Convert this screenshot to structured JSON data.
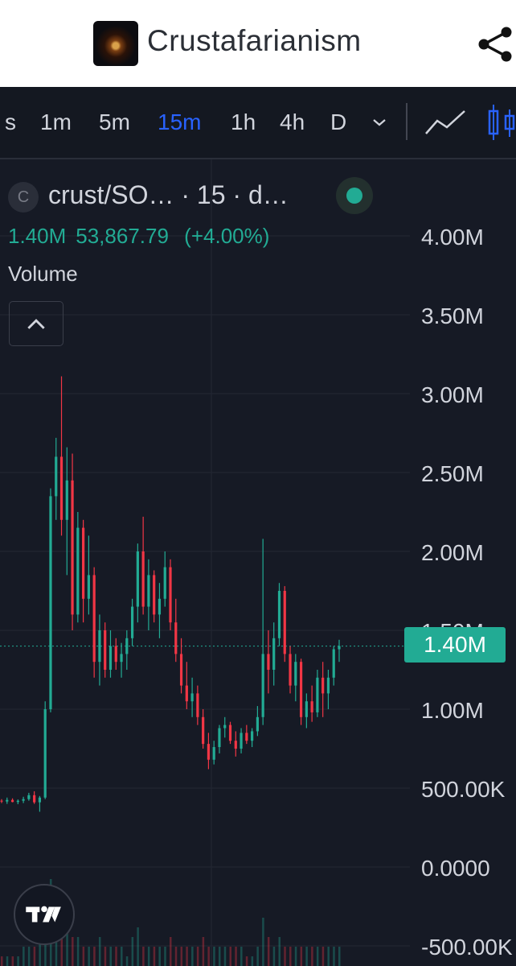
{
  "header": {
    "title": "Crustafarianism",
    "share_icon": "share-icon",
    "logo_icon": "app-logo"
  },
  "toolbar": {
    "timeframes": [
      "s",
      "1m",
      "5m",
      "15m",
      "1h",
      "4h",
      "D"
    ],
    "active_timeframe": "15m",
    "dropdown_icon": "chevron-down-icon",
    "chart_types": [
      "line-chart-icon",
      "candlestick-chart-icon"
    ],
    "accent_color": "#2962ff"
  },
  "legend": {
    "symbol_initial": "C",
    "symbol_title": "crust/SO…",
    "interval_source": "· 15 · d…",
    "market_status": "open",
    "last_value": "1.40M",
    "change": "53,867.79",
    "change_pct": "(+4.00%)",
    "indicator": "Volume",
    "up_color": "#22ab94",
    "down_color": "#f23645"
  },
  "chart_data": {
    "type": "candlestick",
    "title": "crust/SO… · 15 · d…",
    "y_ticks": [
      "4.00M",
      "3.50M",
      "3.00M",
      "2.50M",
      "2.00M",
      "1.50M",
      "1.00M",
      "500.00K",
      "0.0000",
      "-500.00K"
    ],
    "ylim": [
      -500000,
      4000000
    ],
    "last_price": 1400000,
    "last_price_label": "1.40M",
    "grid": true,
    "candles": [
      [
        420000,
        430000,
        405000,
        415000
      ],
      [
        415000,
        440000,
        400000,
        425000
      ],
      [
        425000,
        435000,
        410000,
        412000
      ],
      [
        412000,
        428000,
        398000,
        420000
      ],
      [
        420000,
        445000,
        405000,
        430000
      ],
      [
        430000,
        470000,
        420000,
        455000
      ],
      [
        455000,
        480000,
        400000,
        410000
      ],
      [
        410000,
        450000,
        350000,
        440000
      ],
      [
        440000,
        1050000,
        430000,
        1000000
      ],
      [
        1000000,
        2400000,
        980000,
        2350000
      ],
      [
        2350000,
        2720000,
        2200000,
        2600000
      ],
      [
        2600000,
        3110000,
        2100000,
        2200000
      ],
      [
        2200000,
        2660000,
        1850000,
        2450000
      ],
      [
        2450000,
        2620000,
        1500000,
        1600000
      ],
      [
        1600000,
        2250000,
        1550000,
        2150000
      ],
      [
        2150000,
        2200000,
        1550000,
        1700000
      ],
      [
        1700000,
        2100000,
        1600000,
        1850000
      ],
      [
        1850000,
        1900000,
        1200000,
        1300000
      ],
      [
        1300000,
        1600000,
        1150000,
        1500000
      ],
      [
        1500000,
        1550000,
        1200000,
        1250000
      ],
      [
        1250000,
        1500000,
        1200000,
        1400000
      ],
      [
        1400000,
        1450000,
        1250000,
        1300000
      ],
      [
        1300000,
        1420000,
        1200000,
        1350000
      ],
      [
        1350000,
        1500000,
        1250000,
        1450000
      ],
      [
        1450000,
        1700000,
        1400000,
        1650000
      ],
      [
        1650000,
        2050000,
        1550000,
        2000000
      ],
      [
        2000000,
        2220000,
        1600000,
        1650000
      ],
      [
        1650000,
        1950000,
        1500000,
        1850000
      ],
      [
        1850000,
        1880000,
        1550000,
        1600000
      ],
      [
        1600000,
        1800000,
        1450000,
        1700000
      ],
      [
        1700000,
        2000000,
        1650000,
        1900000
      ],
      [
        1900000,
        1950000,
        1500000,
        1550000
      ],
      [
        1550000,
        1700000,
        1300000,
        1350000
      ],
      [
        1350000,
        1450000,
        1100000,
        1150000
      ],
      [
        1150000,
        1300000,
        1000000,
        1050000
      ],
      [
        1050000,
        1200000,
        950000,
        1100000
      ],
      [
        1100000,
        1150000,
        900000,
        950000
      ],
      [
        950000,
        1000000,
        750000,
        780000
      ],
      [
        780000,
        850000,
        620000,
        680000
      ],
      [
        680000,
        800000,
        650000,
        760000
      ],
      [
        760000,
        900000,
        720000,
        880000
      ],
      [
        880000,
        950000,
        820000,
        900000
      ],
      [
        900000,
        920000,
        780000,
        800000
      ],
      [
        800000,
        860000,
        700000,
        750000
      ],
      [
        750000,
        880000,
        720000,
        850000
      ],
      [
        850000,
        900000,
        780000,
        800000
      ],
      [
        800000,
        880000,
        760000,
        860000
      ],
      [
        860000,
        1020000,
        830000,
        950000
      ],
      [
        950000,
        2080000,
        900000,
        1350000
      ],
      [
        1350000,
        1500000,
        1100000,
        1250000
      ],
      [
        1250000,
        1550000,
        1150000,
        1450000
      ],
      [
        1450000,
        1800000,
        1400000,
        1750000
      ],
      [
        1750000,
        1780000,
        1300000,
        1350000
      ],
      [
        1350000,
        1400000,
        1100000,
        1150000
      ],
      [
        1150000,
        1350000,
        1050000,
        1300000
      ],
      [
        1300000,
        1320000,
        900000,
        950000
      ],
      [
        950000,
        1100000,
        880000,
        1050000
      ],
      [
        1050000,
        1150000,
        920000,
        980000
      ],
      [
        980000,
        1250000,
        950000,
        1200000
      ],
      [
        1200000,
        1300000,
        950000,
        1100000
      ],
      [
        1100000,
        1250000,
        1000000,
        1200000
      ],
      [
        1200000,
        1400000,
        1150000,
        1380000
      ],
      [
        1380000,
        1440000,
        1300000,
        1400000
      ]
    ],
    "volume_bars": [
      1,
      1,
      1,
      1,
      2,
      2,
      2,
      3,
      6,
      9,
      5,
      4,
      7,
      3,
      3,
      2,
      2,
      2,
      3,
      2,
      2,
      2,
      2,
      1,
      3,
      4,
      2,
      2,
      2,
      2,
      2,
      3,
      2,
      2,
      2,
      2,
      2,
      3,
      2,
      2,
      2,
      2,
      2,
      2,
      2,
      1,
      1,
      2,
      5,
      3,
      2,
      3,
      2,
      2,
      2,
      2,
      2,
      2,
      2,
      2,
      2,
      2,
      2
    ]
  },
  "footer": {
    "brand_icon": "tradingview-logo-icon"
  }
}
